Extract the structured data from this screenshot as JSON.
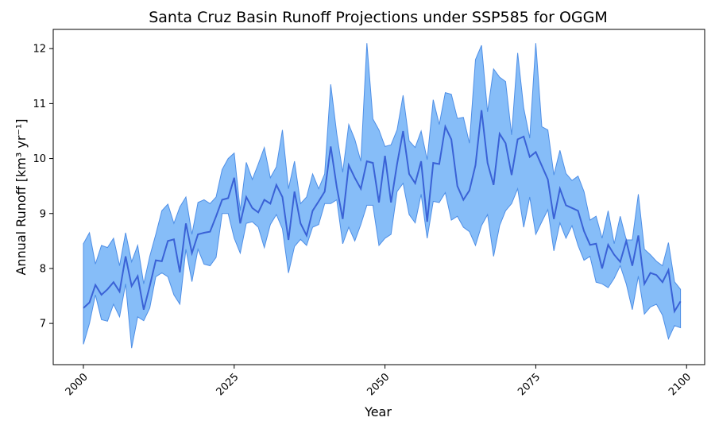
{
  "chart_data": {
    "type": "line",
    "title": "Santa Cruz Basin Runoff Projections under SSP585 for OGGM",
    "xlabel": "Year",
    "ylabel": "Annual Runoff [km³ yr⁻¹]",
    "xlim": [
      1995,
      2103
    ],
    "ylim": [
      6.25,
      12.35
    ],
    "x_ticks": [
      2000,
      2025,
      2050,
      2075,
      2100
    ],
    "y_ticks": [
      7,
      8,
      9,
      10,
      11,
      12
    ],
    "grid": false,
    "colors": {
      "line": "#3a62d6",
      "band_fill": "#86bdf8",
      "band_edge": "#4f8fe6"
    },
    "series": [
      {
        "role": "mean",
        "x": [
          2000,
          2001,
          2002,
          2003,
          2004,
          2005,
          2006,
          2007,
          2008,
          2009,
          2010,
          2011,
          2012,
          2013,
          2014,
          2015,
          2016,
          2017,
          2018,
          2019,
          2020,
          2021,
          2022,
          2023,
          2024,
          2025,
          2026,
          2027,
          2028,
          2029,
          2030,
          2031,
          2032,
          2033,
          2034,
          2035,
          2036,
          2037,
          2038,
          2039,
          2040,
          2041,
          2042,
          2043,
          2044,
          2045,
          2046,
          2047,
          2048,
          2049,
          2050,
          2051,
          2052,
          2053,
          2054,
          2055,
          2056,
          2057,
          2058,
          2059,
          2060,
          2061,
          2062,
          2063,
          2064,
          2065,
          2066,
          2067,
          2068,
          2069,
          2070,
          2071,
          2072,
          2073,
          2074,
          2075,
          2076,
          2077,
          2078,
          2079,
          2080,
          2081,
          2082,
          2083,
          2084,
          2085,
          2086,
          2087,
          2088,
          2089,
          2090,
          2091,
          2092,
          2093,
          2094,
          2095,
          2096,
          2097,
          2098,
          2099
        ],
        "values": [
          7.28,
          7.38,
          7.7,
          7.52,
          7.62,
          7.75,
          7.58,
          8.22,
          7.68,
          7.86,
          7.25,
          7.68,
          8.15,
          8.13,
          8.5,
          8.53,
          7.93,
          8.82,
          8.28,
          8.62,
          8.65,
          8.67,
          8.95,
          9.25,
          9.28,
          9.65,
          8.82,
          9.3,
          9.1,
          9.02,
          9.25,
          9.18,
          9.52,
          9.3,
          8.52,
          9.4,
          8.82,
          8.6,
          9.05,
          9.22,
          9.4,
          10.22,
          9.48,
          8.9,
          9.88,
          9.65,
          9.45,
          9.95,
          9.92,
          9.2,
          10.05,
          9.2,
          9.9,
          10.5,
          9.72,
          9.55,
          9.95,
          8.85,
          9.92,
          9.9,
          10.58,
          10.35,
          9.5,
          9.25,
          9.42,
          9.88,
          10.88,
          9.92,
          9.52,
          10.45,
          10.28,
          9.7,
          10.35,
          10.4,
          10.03,
          10.12,
          9.87,
          9.62,
          8.9,
          9.45,
          9.15,
          9.1,
          9.05,
          8.68,
          8.43,
          8.45,
          8.0,
          8.43,
          8.25,
          8.12,
          8.5,
          8.05,
          8.6,
          7.72,
          7.92,
          7.88,
          7.75,
          7.97,
          7.22,
          7.4
        ]
      },
      {
        "role": "upper",
        "x": [
          2000,
          2001,
          2002,
          2003,
          2004,
          2005,
          2006,
          2007,
          2008,
          2009,
          2010,
          2011,
          2012,
          2013,
          2014,
          2015,
          2016,
          2017,
          2018,
          2019,
          2020,
          2021,
          2022,
          2023,
          2024,
          2025,
          2026,
          2027,
          2028,
          2029,
          2030,
          2031,
          2032,
          2033,
          2034,
          2035,
          2036,
          2037,
          2038,
          2039,
          2040,
          2041,
          2042,
          2043,
          2044,
          2045,
          2046,
          2047,
          2048,
          2049,
          2050,
          2051,
          2052,
          2053,
          2054,
          2055,
          2056,
          2057,
          2058,
          2059,
          2060,
          2061,
          2062,
          2063,
          2064,
          2065,
          2066,
          2067,
          2068,
          2069,
          2070,
          2071,
          2072,
          2073,
          2074,
          2075,
          2076,
          2077,
          2078,
          2079,
          2080,
          2081,
          2082,
          2083,
          2084,
          2085,
          2086,
          2087,
          2088,
          2089,
          2090,
          2091,
          2092,
          2093,
          2094,
          2095,
          2096,
          2097,
          2098,
          2099
        ],
        "values": [
          8.45,
          8.65,
          8.08,
          8.42,
          8.38,
          8.55,
          8.05,
          8.65,
          8.12,
          8.42,
          7.72,
          8.22,
          8.62,
          9.05,
          9.17,
          8.82,
          9.12,
          9.3,
          8.62,
          9.2,
          9.25,
          9.18,
          9.3,
          9.8,
          10.0,
          10.1,
          9.05,
          9.93,
          9.62,
          9.9,
          10.2,
          9.65,
          9.85,
          10.52,
          9.45,
          9.95,
          9.18,
          9.3,
          9.72,
          9.45,
          9.72,
          11.35,
          10.45,
          9.75,
          10.62,
          10.35,
          9.95,
          12.1,
          10.72,
          10.52,
          10.22,
          10.25,
          10.52,
          11.15,
          10.32,
          10.2,
          10.5,
          9.98,
          11.07,
          10.62,
          11.2,
          11.17,
          10.73,
          10.75,
          10.28,
          11.8,
          12.06,
          10.85,
          11.63,
          11.48,
          11.4,
          10.43,
          11.92,
          10.92,
          10.37,
          12.1,
          10.58,
          10.52,
          9.7,
          10.15,
          9.73,
          9.6,
          9.68,
          9.4,
          8.88,
          8.95,
          8.55,
          9.05,
          8.45,
          8.95,
          8.52,
          8.52,
          9.35,
          8.35,
          8.25,
          8.13,
          8.05,
          8.47,
          7.76,
          7.62
        ]
      },
      {
        "role": "lower",
        "x": [
          2000,
          2001,
          2002,
          2003,
          2004,
          2005,
          2006,
          2007,
          2008,
          2009,
          2010,
          2011,
          2012,
          2013,
          2014,
          2015,
          2016,
          2017,
          2018,
          2019,
          2020,
          2021,
          2022,
          2023,
          2024,
          2025,
          2026,
          2027,
          2028,
          2029,
          2030,
          2031,
          2032,
          2033,
          2034,
          2035,
          2036,
          2037,
          2038,
          2039,
          2040,
          2041,
          2042,
          2043,
          2044,
          2045,
          2046,
          2047,
          2048,
          2049,
          2050,
          2051,
          2052,
          2053,
          2054,
          2055,
          2056,
          2057,
          2058,
          2059,
          2060,
          2061,
          2062,
          2063,
          2064,
          2065,
          2066,
          2067,
          2068,
          2069,
          2070,
          2071,
          2072,
          2073,
          2074,
          2075,
          2076,
          2077,
          2078,
          2079,
          2080,
          2081,
          2082,
          2083,
          2084,
          2085,
          2086,
          2087,
          2088,
          2089,
          2090,
          2091,
          2092,
          2093,
          2094,
          2095,
          2096,
          2097,
          2098,
          2099
        ],
        "values": [
          6.62,
          7.0,
          7.52,
          7.07,
          7.04,
          7.35,
          7.12,
          7.72,
          6.55,
          7.12,
          7.05,
          7.28,
          7.85,
          7.92,
          7.85,
          7.52,
          7.35,
          8.35,
          7.76,
          8.35,
          8.08,
          8.05,
          8.2,
          9.0,
          9.0,
          8.55,
          8.28,
          8.82,
          8.85,
          8.75,
          8.38,
          8.8,
          8.98,
          8.72,
          7.92,
          8.4,
          8.53,
          8.42,
          8.75,
          8.8,
          9.18,
          9.18,
          9.25,
          8.45,
          8.75,
          8.5,
          8.8,
          9.15,
          9.15,
          8.42,
          8.55,
          8.62,
          9.4,
          9.55,
          8.98,
          8.83,
          9.35,
          8.55,
          9.22,
          9.2,
          9.38,
          8.88,
          8.95,
          8.75,
          8.67,
          8.42,
          8.78,
          8.98,
          8.22,
          8.78,
          9.05,
          9.18,
          9.45,
          8.75,
          9.3,
          8.62,
          8.85,
          9.07,
          8.32,
          8.83,
          8.55,
          8.78,
          8.42,
          8.15,
          8.22,
          7.75,
          7.72,
          7.65,
          7.82,
          8.05,
          7.72,
          7.25,
          7.86,
          7.17,
          7.3,
          7.35,
          7.15,
          6.72,
          6.96,
          6.92
        ]
      }
    ]
  }
}
